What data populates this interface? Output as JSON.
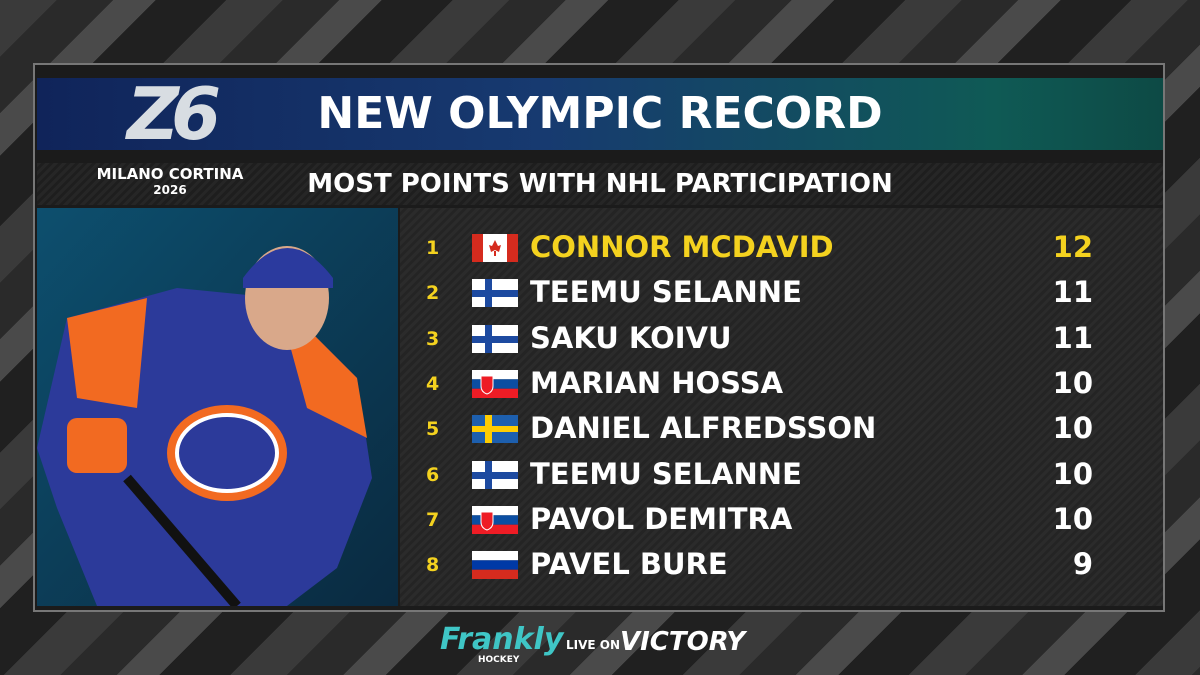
{
  "header": {
    "title": "NEW OLYMPIC RECORD",
    "subtitle": "MOST POINTS WITH NHL PARTICIPATION"
  },
  "logo": {
    "mark": "Z6",
    "name": "MILANO CORTINA",
    "year": "2026"
  },
  "table": {
    "rows": [
      [
        "1",
        "CONNOR MCDAVID",
        "12"
      ],
      [
        "2",
        "TEEMU SELANNE",
        "11"
      ],
      [
        "3",
        "SAKU KOIVU",
        "11"
      ],
      [
        "4",
        "MARIAN HOSSA",
        "10"
      ],
      [
        "5",
        "DANIEL ALFREDSSON",
        "10"
      ],
      [
        "6",
        "TEEMU SELANNE",
        "10"
      ],
      [
        "7",
        "PAVOL DEMITRA",
        "10"
      ],
      [
        "8",
        "PAVEL BURE",
        "9"
      ]
    ]
  },
  "footer": {
    "brand": "Frankly",
    "brand_sub": "HOCKEY",
    "live": "LIVE ON",
    "network": "VICTORY"
  }
}
